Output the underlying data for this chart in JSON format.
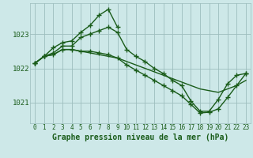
{
  "background_color": "#cde8e8",
  "grid_color": "#9dbdbd",
  "line_color": "#1a5c1a",
  "marker_color": "#1a5c1a",
  "xlabel": "Graphe pression niveau de la mer (hPa)",
  "xlabel_fontsize": 7,
  "tick_fontsize": 5.5,
  "ytick_fontsize": 6.5,
  "ylim": [
    1020.4,
    1023.9
  ],
  "yticks": [
    1021,
    1022,
    1023
  ],
  "xlim": [
    -0.5,
    23.5
  ],
  "xticks": [
    0,
    1,
    2,
    3,
    4,
    5,
    6,
    7,
    8,
    9,
    10,
    11,
    12,
    13,
    14,
    15,
    16,
    17,
    18,
    19,
    20,
    21,
    22,
    23
  ],
  "series": [
    {
      "x": [
        0,
        1,
        2,
        3,
        4,
        5,
        6,
        7,
        8,
        9,
        10,
        11,
        12,
        13,
        14,
        15,
        16,
        17,
        18,
        19,
        20,
        21,
        22,
        23
      ],
      "y": [
        1022.15,
        1022.35,
        1022.4,
        1022.55,
        1022.55,
        1022.5,
        1022.45,
        1022.4,
        1022.35,
        1022.3,
        1022.2,
        1022.1,
        1022.0,
        1021.9,
        1021.8,
        1021.7,
        1021.6,
        1021.5,
        1021.4,
        1021.35,
        1021.3,
        1021.4,
        1021.5,
        1021.65
      ],
      "marker": null,
      "linewidth": 1.0,
      "linestyle": "-"
    },
    {
      "x": [
        0,
        1,
        2,
        3,
        4,
        5,
        6,
        7,
        8,
        9
      ],
      "y": [
        1022.15,
        1022.35,
        1022.6,
        1022.75,
        1022.8,
        1023.05,
        1023.25,
        1023.55,
        1023.72,
        1023.2
      ],
      "marker": "+",
      "linewidth": 1.0,
      "linestyle": "-"
    },
    {
      "x": [
        0,
        1,
        2,
        3,
        4,
        5,
        6,
        7,
        8,
        9,
        10,
        11,
        12,
        13,
        14,
        15,
        16,
        17,
        18,
        19,
        20,
        21,
        22,
        23
      ],
      "y": [
        1022.15,
        1022.35,
        1022.45,
        1022.65,
        1022.65,
        1022.9,
        1023.0,
        1023.1,
        1023.2,
        1023.05,
        1022.55,
        1022.35,
        1022.2,
        1022.0,
        1021.85,
        1021.65,
        1021.5,
        1021.05,
        1020.75,
        1020.75,
        1021.1,
        1021.55,
        1021.8,
        1021.85
      ],
      "marker": "+",
      "linewidth": 1.0,
      "linestyle": "-"
    },
    {
      "x": [
        0,
        1,
        2,
        3,
        4,
        5,
        6,
        7,
        8,
        9,
        10,
        11,
        12,
        13,
        14,
        15,
        16,
        17,
        18,
        19,
        20,
        21,
        22,
        23
      ],
      "y": [
        1022.15,
        1022.35,
        1022.4,
        1022.55,
        1022.55,
        1022.5,
        1022.5,
        1022.45,
        1022.4,
        1022.3,
        1022.1,
        1021.95,
        1021.8,
        1021.65,
        1021.5,
        1021.35,
        1021.2,
        1020.95,
        1020.7,
        1020.72,
        1020.82,
        1021.15,
        1021.5,
        1021.85
      ],
      "marker": "+",
      "linewidth": 1.0,
      "linestyle": "-"
    }
  ]
}
